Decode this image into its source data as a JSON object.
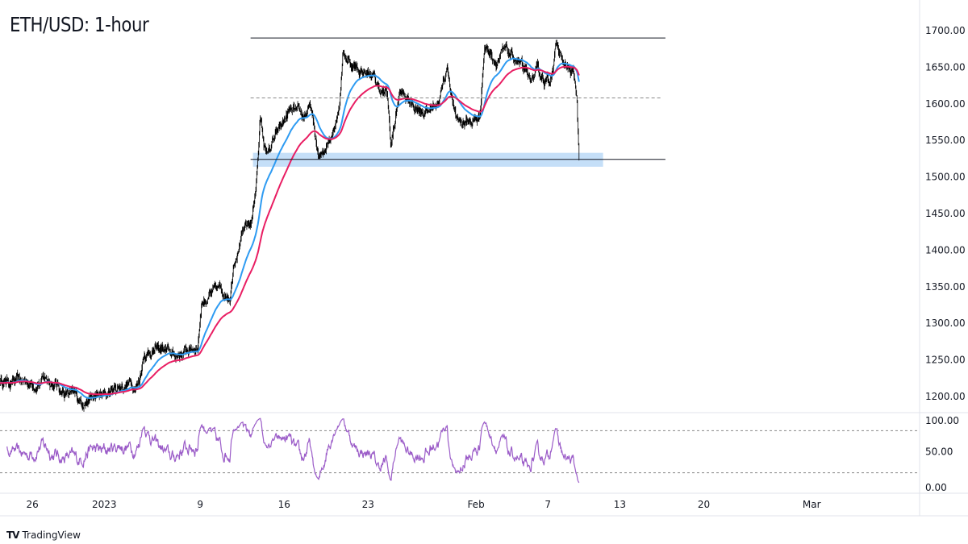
{
  "title": "ETH/USD: 1-hour",
  "branding": "TradingView",
  "colors": {
    "candle": "#000000",
    "ema_fast": "#2e9bf2",
    "ema_slow": "#e91e63",
    "rsi": "#9b5cc8",
    "zone": "#bbd9f7"
  },
  "chart_data": {
    "type": "candlestick",
    "title": "ETH/USD: 1-hour",
    "y_ticks": [
      "1700.00",
      "1650.00",
      "1600.00",
      "1550.00",
      "1500.00",
      "1450.00",
      "1400.00",
      "1350.00",
      "1300.00",
      "1250.00",
      "1200.00"
    ],
    "ylim": [
      1170,
      1745
    ],
    "x_ticks": [
      {
        "label": "26",
        "day": 0
      },
      {
        "label": "2023",
        "day": 6
      },
      {
        "label": "9",
        "day": 14
      },
      {
        "label": "16",
        "day": 21
      },
      {
        "label": "23",
        "day": 28
      },
      {
        "label": "Feb",
        "day": 37
      },
      {
        "label": "7",
        "day": 43
      },
      {
        "label": "13",
        "day": 49
      },
      {
        "label": "20",
        "day": 56
      },
      {
        "label": "Mar",
        "day": 65
      }
    ],
    "xlim_days": [
      -2.7,
      74
    ],
    "price_path": [
      [
        -2.7,
        1222
      ],
      [
        0,
        1218
      ],
      [
        1.3,
        1225
      ],
      [
        2.7,
        1205
      ],
      [
        4,
        1195
      ],
      [
        5.9,
        1200
      ],
      [
        7.3,
        1215
      ],
      [
        8.9,
        1220
      ],
      [
        9.3,
        1260
      ],
      [
        10.8,
        1265
      ],
      [
        11.8,
        1255
      ],
      [
        13.1,
        1265
      ],
      [
        13.8,
        1270
      ],
      [
        14.1,
        1330
      ],
      [
        15.5,
        1345
      ],
      [
        16.5,
        1340
      ],
      [
        16.8,
        1390
      ],
      [
        17.5,
        1420
      ],
      [
        18.3,
        1440
      ],
      [
        18.7,
        1500
      ],
      [
        19,
        1580
      ],
      [
        19.5,
        1530
      ],
      [
        20.5,
        1560
      ],
      [
        21.5,
        1590
      ],
      [
        22.5,
        1580
      ],
      [
        23.2,
        1595
      ],
      [
        23.9,
        1520
      ],
      [
        24.9,
        1560
      ],
      [
        25.6,
        1600
      ],
      [
        25.9,
        1670
      ],
      [
        26.9,
        1650
      ],
      [
        28.3,
        1640
      ],
      [
        28.9,
        1620
      ],
      [
        29.6,
        1610
      ],
      [
        29.9,
        1540
      ],
      [
        30.6,
        1615
      ],
      [
        31.6,
        1600
      ],
      [
        33,
        1590
      ],
      [
        34,
        1610
      ],
      [
        34.6,
        1650
      ],
      [
        35.3,
        1580
      ],
      [
        36.3,
        1575
      ],
      [
        37.3,
        1580
      ],
      [
        37.7,
        1680
      ],
      [
        38.7,
        1660
      ],
      [
        39.4,
        1670
      ],
      [
        40.4,
        1660
      ],
      [
        41.4,
        1630
      ],
      [
        42.1,
        1640
      ],
      [
        43.1,
        1630
      ],
      [
        43.7,
        1680
      ],
      [
        44.4,
        1650
      ],
      [
        45.1,
        1640
      ],
      [
        45.4,
        1610
      ],
      [
        45.6,
        1525
      ]
    ],
    "levels": [
      {
        "name": "resistance",
        "price": 1690,
        "style": "solid",
        "from_day": 18.2,
        "to_day": 52.8
      },
      {
        "name": "mid",
        "price": 1608,
        "style": "dashed",
        "from_day": 18.2,
        "to_day": 52.5
      },
      {
        "name": "support",
        "price": 1524,
        "style": "solid",
        "from_day": 18.2,
        "to_day": 52.8
      }
    ],
    "support_zone": {
      "low": 1514,
      "high": 1533,
      "from_day": 18.4,
      "to_day": 47.6
    },
    "ema_periods": {
      "fast": 50,
      "slow": 100
    },
    "rsi": {
      "period": 14,
      "ylim": [
        0,
        100
      ],
      "y_ticks": [
        "100.00",
        "50.00",
        "0.00"
      ],
      "bands": [
        80,
        20
      ]
    }
  }
}
